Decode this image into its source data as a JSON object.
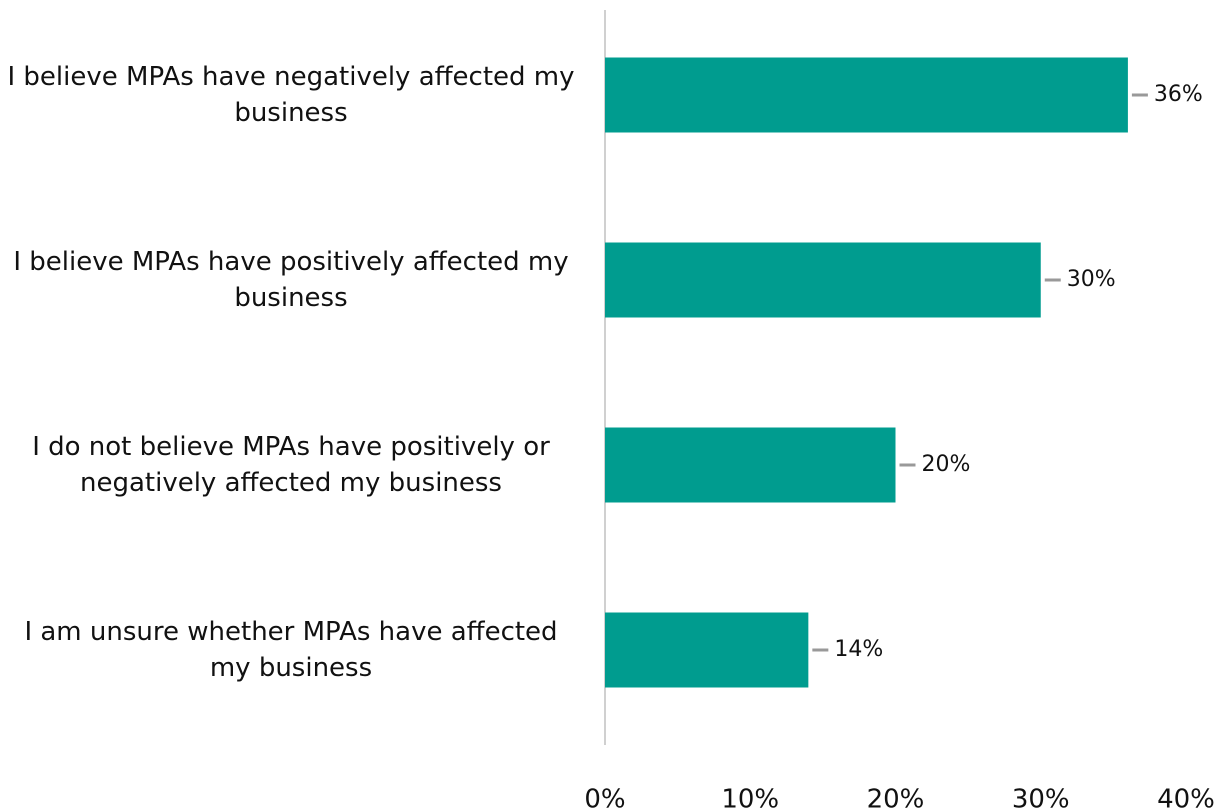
{
  "chart_data": {
    "type": "bar",
    "orientation": "horizontal",
    "categories": [
      "I believe MPAs have negatively affected my business",
      "I believe MPAs have positively affected my business",
      "I do not believe MPAs have positively or negatively affected my business",
      "I am unsure whether MPAs have affected my business"
    ],
    "values": [
      36,
      30,
      20,
      14
    ],
    "value_labels": [
      "36%",
      "30%",
      "20%",
      "14%"
    ],
    "color": "#009c8f",
    "xlim": [
      0,
      40
    ],
    "xticks": [
      {
        "value": 0,
        "label": "0%"
      },
      {
        "value": 10,
        "label": "10%"
      },
      {
        "value": 20,
        "label": "20%"
      },
      {
        "value": 30,
        "label": "30%"
      },
      {
        "value": 40,
        "label": "40%"
      }
    ],
    "grid": false
  }
}
